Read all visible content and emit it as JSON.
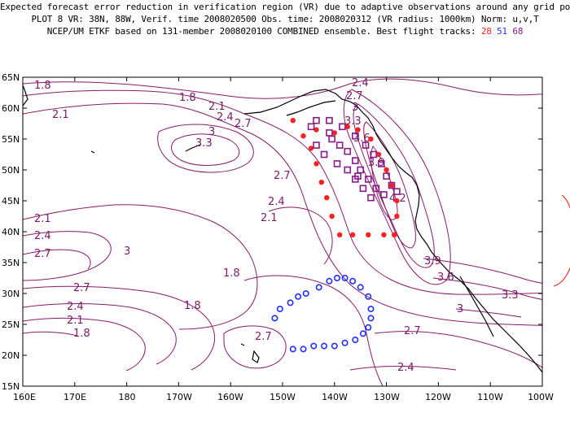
{
  "header": {
    "line1": "Expected forecast error reduction in verification region (VR) due to adaptive observations around any grid point.",
    "line2": "PLOT 8 VR: 38N, 88W, Verif. time 2008020500 Obs. time: 2008020312 (VR radius: 1000km) Norm: u,v,T",
    "line3_prefix": "NCEP/UM ETKF based on 131-member 2008020100 COMBINED ensemble.  Best flight tracks:",
    "track_a": "28",
    "track_b": "51",
    "track_c": "68"
  },
  "colors": {
    "contour": "#8a1a6a",
    "track_red": "#ff2020",
    "track_blue": "#2030ff",
    "track_purple": "#8a1a8a",
    "land": "#000000",
    "vr_circle": "#ff3030"
  },
  "axes": {
    "lat_labels": [
      "65N",
      "60N",
      "55N",
      "50N",
      "45N",
      "40N",
      "35N",
      "30N",
      "25N",
      "20N",
      "15N"
    ],
    "lon_labels": [
      "160E",
      "170E",
      "180",
      "170W",
      "160W",
      "150W",
      "140W",
      "130W",
      "120W",
      "110W",
      "100W"
    ]
  },
  "contour_labels": [
    {
      "text": "1.8"
    },
    {
      "text": "1.8"
    },
    {
      "text": "2.1"
    },
    {
      "text": "2.1"
    },
    {
      "text": "2.4"
    },
    {
      "text": "2.7"
    },
    {
      "text": "3"
    },
    {
      "text": "3.3"
    },
    {
      "text": "2.4"
    },
    {
      "text": "2.7"
    },
    {
      "text": "3"
    },
    {
      "text": "3.3"
    },
    {
      "text": "3.6"
    },
    {
      "text": "3.9"
    },
    {
      "text": "4.2"
    },
    {
      "text": "2.7"
    },
    {
      "text": "2.4"
    },
    {
      "text": "2.1"
    },
    {
      "text": "2.1"
    },
    {
      "text": "2.4"
    },
    {
      "text": "2.7"
    },
    {
      "text": "3"
    },
    {
      "text": "1.8"
    },
    {
      "text": "2.7"
    },
    {
      "text": "2.4"
    },
    {
      "text": "2.1"
    },
    {
      "text": "1.8"
    },
    {
      "text": "1.8"
    },
    {
      "text": "2.7"
    },
    {
      "text": "2.7"
    },
    {
      "text": "2.4"
    },
    {
      "text": "3.9"
    },
    {
      "text": "3.6"
    },
    {
      "text": "3.3"
    },
    {
      "text": "3"
    }
  ],
  "tracks": {
    "red": [
      [
        -148,
        58
      ],
      [
        -146,
        55.5
      ],
      [
        -144.5,
        53.5
      ],
      [
        -143.5,
        51
      ],
      [
        -142.5,
        48
      ],
      [
        -141.5,
        45.5
      ],
      [
        -140.5,
        42.5
      ],
      [
        -139,
        39.5
      ],
      [
        -136.5,
        39.5
      ],
      [
        -133.5,
        39.5
      ],
      [
        -130.5,
        39.5
      ],
      [
        -128.5,
        39.5
      ],
      [
        -128,
        42.5
      ],
      [
        -128,
        45
      ],
      [
        -129,
        47.5
      ],
      [
        -130,
        50
      ],
      [
        -131.5,
        52.5
      ],
      [
        -133,
        55
      ],
      [
        -135.5,
        56.5
      ],
      [
        -137.5,
        57
      ],
      [
        -140,
        56
      ],
      [
        -143.5,
        56.5
      ]
    ],
    "blue": [
      [
        -151.5,
        26
      ],
      [
        -150.5,
        27.5
      ],
      [
        -148.5,
        28.5
      ],
      [
        -147,
        29.5
      ],
      [
        -145.5,
        30
      ],
      [
        -143,
        31
      ],
      [
        -141,
        32
      ],
      [
        -139.5,
        32.5
      ],
      [
        -138,
        32.5
      ],
      [
        -136.5,
        32
      ],
      [
        -135,
        31
      ],
      [
        -133.5,
        29.5
      ],
      [
        -133,
        27.5
      ],
      [
        -133,
        26
      ],
      [
        -133.5,
        24.5
      ],
      [
        -134.5,
        23.5
      ],
      [
        -136,
        22.5
      ],
      [
        -138,
        22
      ],
      [
        -140,
        21.5
      ],
      [
        -142,
        21.5
      ],
      [
        -144,
        21.5
      ],
      [
        -146,
        21
      ],
      [
        -148,
        21
      ]
    ],
    "purple": [
      [
        -144.5,
        57
      ],
      [
        -143.5,
        58
      ],
      [
        -141,
        58
      ],
      [
        -138.5,
        57
      ],
      [
        -136,
        55.5
      ],
      [
        -134,
        54
      ],
      [
        -132.5,
        52.5
      ],
      [
        -131,
        51
      ],
      [
        -130,
        49
      ],
      [
        -129,
        47.5
      ],
      [
        -128,
        46.5
      ],
      [
        -130.5,
        46
      ],
      [
        -132,
        47
      ],
      [
        -133.5,
        48.5
      ],
      [
        -135,
        50
      ],
      [
        -136,
        51.5
      ],
      [
        -137.5,
        53
      ],
      [
        -139,
        54
      ],
      [
        -140.5,
        55
      ],
      [
        -141,
        56
      ],
      [
        -143.5,
        54
      ],
      [
        -142,
        52.5
      ],
      [
        -139.5,
        51
      ],
      [
        -137.5,
        50
      ],
      [
        -136,
        48.5
      ],
      [
        -134.5,
        47
      ],
      [
        -133,
        45.5
      ],
      [
        -135.5,
        49
      ]
    ]
  }
}
